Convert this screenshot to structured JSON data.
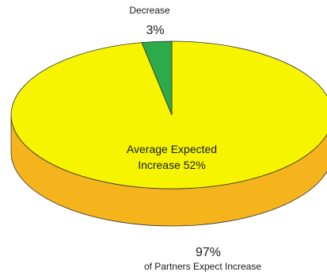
{
  "chart_data": {
    "type": "pie",
    "style": "3d",
    "slices": [
      {
        "label": "Decrease",
        "value": 3,
        "display": "3%",
        "color": "#2daa4a"
      },
      {
        "label": "of Partners Expect Increase",
        "value": 97,
        "display": "97%",
        "color": "#f7f400"
      }
    ],
    "side_colors": {
      "increase": "#f5b41c",
      "decrease": "#1e8a37"
    },
    "center_annotation": {
      "line1": "Average Expected",
      "line2": "Increase 52%"
    }
  }
}
